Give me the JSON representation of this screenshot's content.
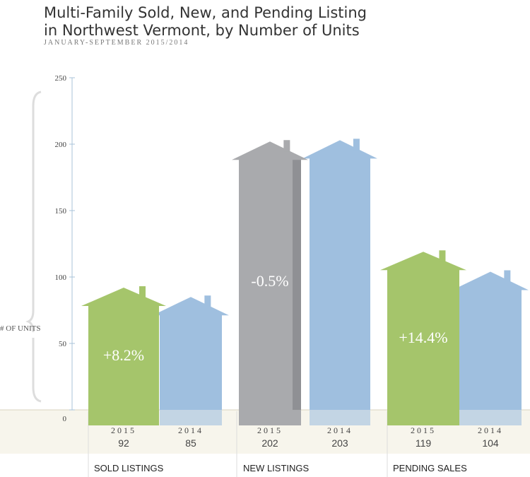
{
  "header": {
    "title": "Multi-Family Sold, New, and Pending Listing\nin Northwest Vermont, by Number of Units",
    "subtitle": "JANUARY-SEPTEMBER 2015/2014"
  },
  "chart_data": {
    "type": "bar",
    "title": "Multi-Family Sold, New, and Pending Listing in Northwest Vermont, by Number of Units",
    "subtitle": "JANUARY-SEPTEMBER 2015/2014",
    "ylabel": "# OF UNITS",
    "xlabel": "",
    "ylim": [
      0,
      250
    ],
    "yticks": [
      0,
      50,
      100,
      150,
      200,
      250
    ],
    "grid": false,
    "categories": [
      "SOLD LISTINGS",
      "NEW LISTINGS",
      "PENDING SALES"
    ],
    "series": [
      {
        "name": "2015",
        "values": [
          92,
          202,
          119
        ]
      },
      {
        "name": "2014",
        "values": [
          85,
          203,
          104
        ]
      }
    ],
    "percent_change": [
      "+8.2%",
      "-0.5%",
      "+14.4%"
    ]
  },
  "colors": {
    "green": "#a5c56b",
    "blue": "#9fbfdf",
    "gray": "#a9aaad",
    "gray_dark": "#8f9094",
    "footer_bg": "#f7f5ec",
    "axis": "#a9c3da"
  }
}
